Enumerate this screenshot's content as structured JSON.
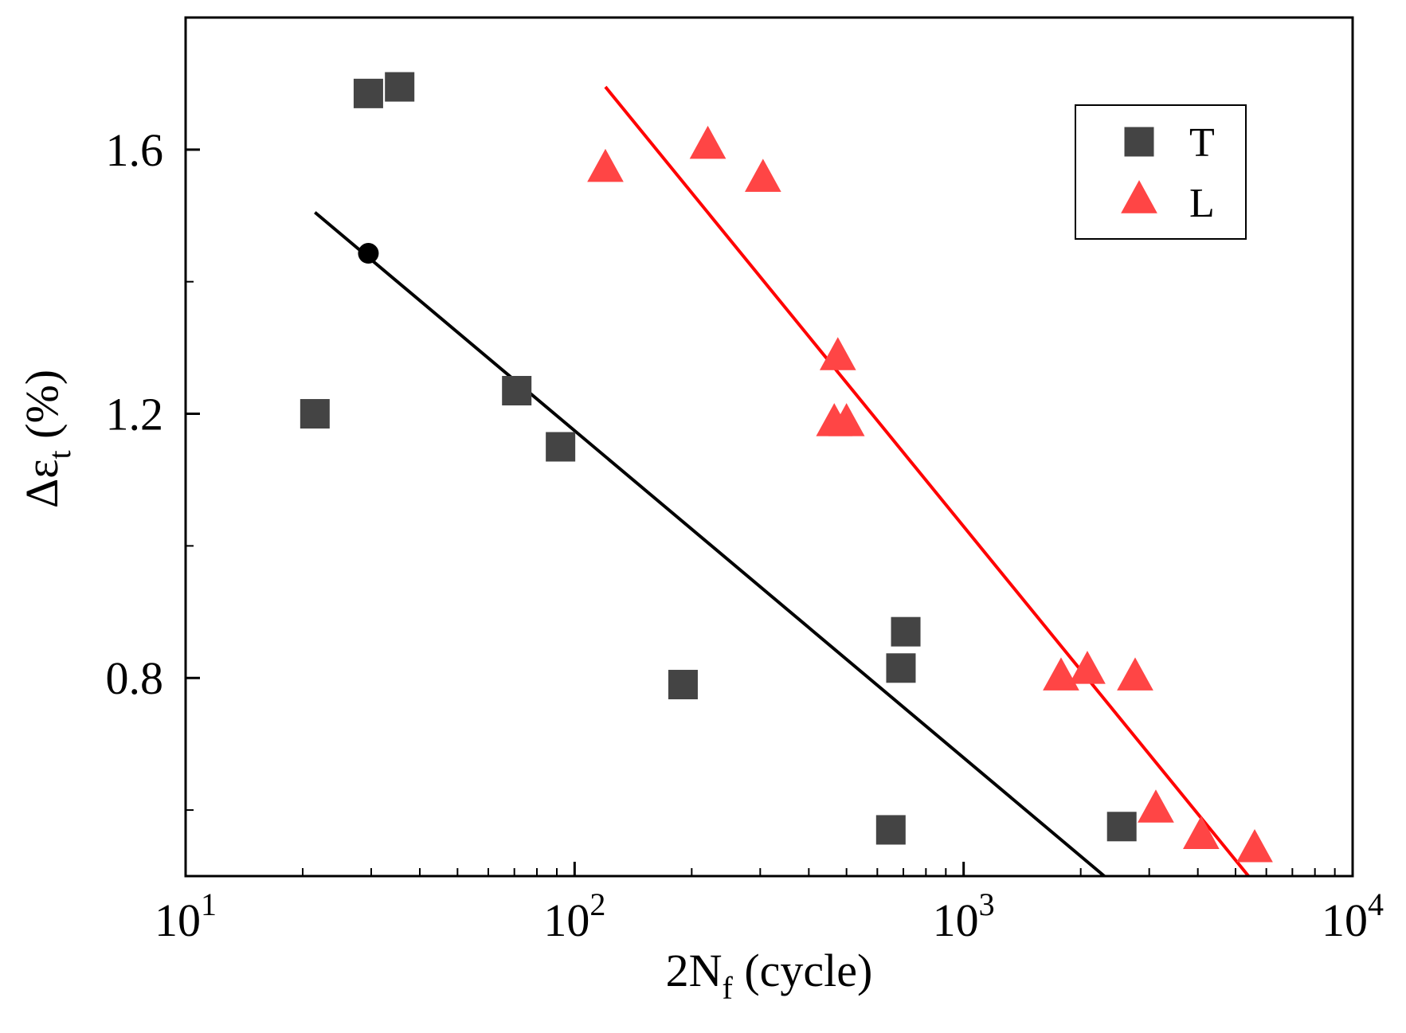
{
  "chart_data": {
    "type": "scatter",
    "title": "",
    "xlabel": {
      "base": "2N",
      "sub": "f",
      "rest": " (cycle)"
    },
    "ylabel": {
      "base": "Δε",
      "sub": "t",
      "rest": " (%)"
    },
    "xscale": "log",
    "xlim": [
      10,
      10000
    ],
    "ylim": [
      0.5,
      1.8
    ],
    "x_ticks": [
      {
        "value": 10,
        "base": "10",
        "exp": "1"
      },
      {
        "value": 100,
        "base": "10",
        "exp": "2"
      },
      {
        "value": 1000,
        "base": "10",
        "exp": "3"
      },
      {
        "value": 10000,
        "base": "10",
        "exp": "4"
      }
    ],
    "y_ticks": [
      {
        "value": 0.8,
        "label": "0.8"
      },
      {
        "value": 1.2,
        "label": "1.2"
      },
      {
        "value": 1.6,
        "label": "1.6"
      }
    ],
    "grid": false,
    "legend_position": "top-right",
    "series": [
      {
        "name": "T",
        "marker": "square",
        "color": "#444444",
        "points": [
          {
            "x": 21.5,
            "y": 1.2
          },
          {
            "x": 29.5,
            "y": 1.685
          },
          {
            "x": 35.5,
            "y": 1.695
          },
          {
            "x": 71,
            "y": 1.235
          },
          {
            "x": 92,
            "y": 1.15
          },
          {
            "x": 190,
            "y": 0.79
          },
          {
            "x": 650,
            "y": 0.57
          },
          {
            "x": 690,
            "y": 0.815
          },
          {
            "x": 710,
            "y": 0.87
          },
          {
            "x": 2550,
            "y": 0.575
          }
        ],
        "fit_line": {
          "color": "#000000",
          "x": [
            21.5,
            2300
          ],
          "y": [
            1.505,
            0.5
          ]
        }
      },
      {
        "name": "L",
        "marker": "triangle",
        "color": "#ff4545",
        "points": [
          {
            "x": 120,
            "y": 1.57
          },
          {
            "x": 220,
            "y": 1.605
          },
          {
            "x": 305,
            "y": 1.555
          },
          {
            "x": 465,
            "y": 1.185
          },
          {
            "x": 475,
            "y": 1.285
          },
          {
            "x": 500,
            "y": 1.185
          },
          {
            "x": 1780,
            "y": 0.8
          },
          {
            "x": 2080,
            "y": 0.81
          },
          {
            "x": 2760,
            "y": 0.8
          },
          {
            "x": 3120,
            "y": 0.6
          },
          {
            "x": 4080,
            "y": 0.56
          },
          {
            "x": 5600,
            "y": 0.54
          }
        ],
        "fit_line": {
          "color": "#ff0000",
          "x": [
            120,
            5400
          ],
          "y": [
            1.695,
            0.5
          ]
        }
      }
    ],
    "highlight_point": {
      "x": 29.5,
      "y": 1.443,
      "color": "#000000"
    }
  }
}
